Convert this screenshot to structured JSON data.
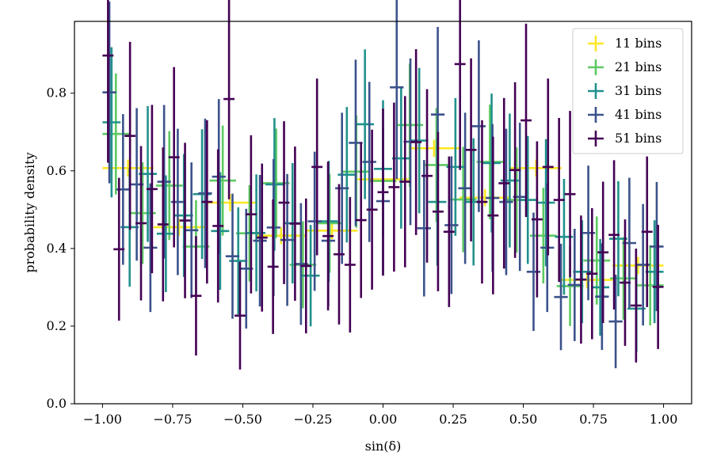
{
  "chart_data": {
    "type": "scatter",
    "xlabel": "sin(δ)",
    "ylabel": "probability density",
    "xlim": [
      -1.1,
      1.1
    ],
    "ylim": [
      0.0,
      0.985
    ],
    "xticks": [
      -1.0,
      -0.75,
      -0.5,
      -0.25,
      0.0,
      0.25,
      0.5,
      0.75,
      1.0
    ],
    "xtick_labels": [
      "−1.00",
      "−0.75",
      "−0.50",
      "−0.25",
      "0.00",
      "0.25",
      "0.50",
      "0.75",
      "1.00"
    ],
    "yticks": [
      0.0,
      0.2,
      0.4,
      0.6,
      0.8
    ],
    "ytick_labels": [
      "0.0",
      "0.2",
      "0.4",
      "0.6",
      "0.8"
    ],
    "grid": false,
    "legend_position": "top-right",
    "series": [
      {
        "name": "11 bins",
        "color": "#fde725",
        "y": [
          0.607,
          0.455,
          0.518,
          0.433,
          0.446,
          0.578,
          0.658,
          0.531,
          0.607,
          0.319,
          0.356
        ],
        "yerr": 0.022
      },
      {
        "name": "21 bins",
        "color": "#5ec962",
        "y": [
          0.695,
          0.491,
          0.562,
          0.405,
          0.575,
          0.439,
          0.568,
          0.358,
          0.465,
          0.598,
          0.574,
          0.718,
          0.615,
          0.526,
          0.623,
          0.525,
          0.433,
          0.303,
          0.369,
          0.323,
          0.305
        ]
      },
      {
        "name": "31 bins",
        "color": "#21918c",
        "y": [
          0.725,
          0.455,
          0.592,
          0.438,
          0.485,
          0.54,
          0.445,
          0.368,
          0.44,
          0.565,
          0.465,
          0.33,
          0.47,
          0.59,
          0.72,
          0.605,
          0.632,
          0.678,
          0.52,
          0.61,
          0.52,
          0.62,
          0.575,
          0.525,
          0.518,
          0.43,
          0.34,
          0.3,
          0.425,
          0.245,
          0.34
        ]
      },
      {
        "name": "41 bins",
        "color": "#3b528b",
        "y": [
          0.802,
          0.552,
          0.565,
          0.402,
          0.572,
          0.52,
          0.447,
          0.542,
          0.585,
          0.38,
          0.348,
          0.42,
          0.454,
          0.422,
          0.36,
          0.47,
          0.42,
          0.555,
          0.672,
          0.623,
          0.522,
          0.815,
          0.675,
          0.452,
          0.745,
          0.46,
          0.555,
          0.715,
          0.53,
          0.52,
          0.533,
          0.34,
          0.402,
          0.275,
          0.306,
          0.44,
          0.276,
          0.212,
          0.414,
          0.358,
          0.405
        ]
      },
      {
        "name": "51 bins",
        "color": "#440154",
        "y": [
          0.897,
          0.398,
          0.69,
          0.465,
          0.553,
          0.462,
          0.635,
          0.472,
          0.278,
          0.52,
          0.458,
          0.785,
          0.227,
          0.488,
          0.428,
          0.353,
          0.518,
          0.464,
          0.355,
          0.61,
          0.432,
          0.385,
          0.358,
          0.473,
          0.5,
          0.545,
          0.558,
          0.572,
          0.674,
          0.587,
          0.495,
          0.443,
          0.875,
          0.654,
          0.52,
          0.485,
          0.568,
          0.602,
          0.73,
          0.475,
          0.61,
          0.525,
          0.54,
          0.32,
          0.335,
          0.39,
          0.435,
          0.312,
          0.253,
          0.443,
          0.301
        ]
      }
    ]
  }
}
